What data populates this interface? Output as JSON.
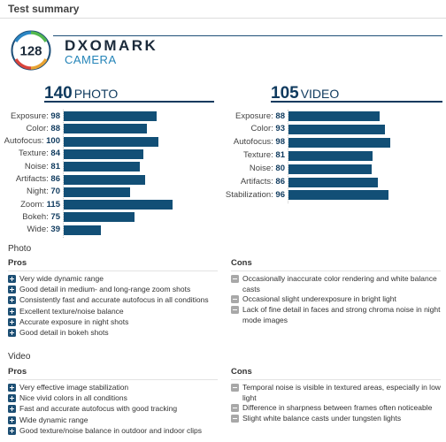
{
  "section_title": "Test summary",
  "brand": {
    "name": "DXOMARK",
    "sub": "CAMERA",
    "score": "128"
  },
  "photo_score": {
    "value": "140",
    "label": "PHOTO"
  },
  "video_score": {
    "value": "105",
    "label": "VIDEO"
  },
  "chart_data": [
    {
      "type": "bar",
      "orientation": "horizontal",
      "title": "140 PHOTO",
      "categories": [
        "Exposure",
        "Color",
        "Autofocus",
        "Texture",
        "Noise",
        "Artifacts",
        "Night",
        "Zoom",
        "Bokeh",
        "Wide"
      ],
      "values": [
        98,
        88,
        100,
        84,
        81,
        86,
        70,
        115,
        75,
        39
      ],
      "xlim": [
        0,
        150
      ]
    },
    {
      "type": "bar",
      "orientation": "horizontal",
      "title": "105 VIDEO",
      "categories": [
        "Exposure",
        "Color",
        "Autofocus",
        "Texture",
        "Noise",
        "Artifacts",
        "Stabilization"
      ],
      "values": [
        88,
        93,
        98,
        81,
        80,
        86,
        96
      ],
      "xlim": [
        0,
        150
      ]
    }
  ],
  "photo": {
    "heading": "Photo",
    "pros_label": "Pros",
    "cons_label": "Cons",
    "pros": [
      "Very wide dynamic range",
      "Good detail in medium- and long-range zoom shots",
      "Consistently fast and accurate autofocus in all conditions",
      "Excellent texture/noise balance",
      "Accurate exposure in night shots",
      "Good detail in bokeh shots"
    ],
    "cons": [
      "Occasionally inaccurate color rendering and white balance casts",
      "Occasional slight underexposure in bright light",
      "Lack of fine detail in faces and strong chroma noise in night mode images"
    ]
  },
  "video": {
    "heading": "Video",
    "pros_label": "Pros",
    "cons_label": "Cons",
    "pros": [
      "Very effective image stabilization",
      "Nice vivid colors in all conditions",
      "Fast and accurate autofocus with good tracking",
      "Wide dynamic range",
      "Good texture/noise balance in outdoor and indoor clips"
    ],
    "cons": [
      "Temporal noise is visible in textured areas, especially in low light",
      "Difference in sharpness between frames often noticeable",
      "Slight white balance casts under tungsten lights"
    ]
  }
}
